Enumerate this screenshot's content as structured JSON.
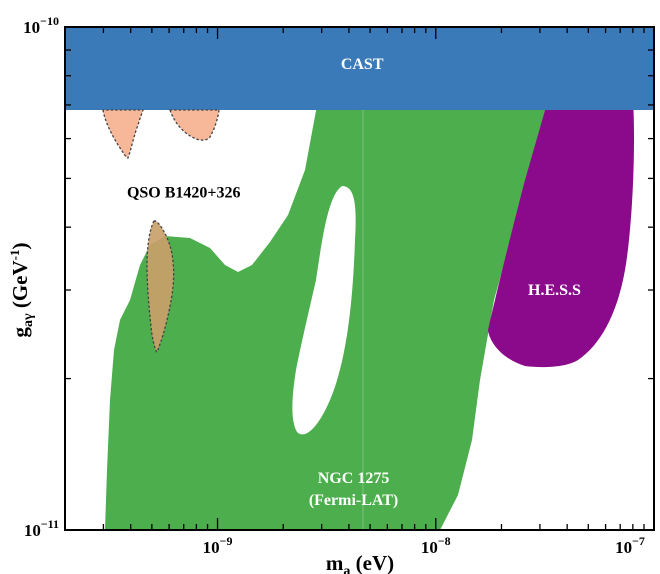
{
  "chart_data": {
    "type": "area",
    "xlabel_main": "m",
    "xlabel_sub": "a",
    "xlabel_rest": " (eV)",
    "ylabel_main": "g",
    "ylabel_sub": "aγ",
    "ylabel_unit": " (GeV",
    "ylabel_exp": "-1",
    "ylabel_close": ")",
    "x_scale": "log",
    "y_scale": "log",
    "xlim": [
      2e-10,
      1e-07
    ],
    "ylim": [
      1e-11,
      1e-10
    ],
    "x_ticks": [
      {
        "value": 1e-09,
        "base": "10",
        "exp": "−9"
      },
      {
        "value": 1e-08,
        "base": "10",
        "exp": "−8"
      },
      {
        "value": 1e-07,
        "base": "10",
        "exp": "−7"
      }
    ],
    "y_ticks": [
      {
        "value": 1e-11,
        "base": "10",
        "exp": "−11"
      },
      {
        "value": 1e-10,
        "base": "10",
        "exp": "−10"
      }
    ],
    "grid": false,
    "legend": "none",
    "regions": [
      {
        "name": "CAST",
        "label": "CAST",
        "color": "#3a7ab8",
        "label_color": "#ffffff",
        "label_x": 4.6e-09,
        "label_y": 8.25e-11
      },
      {
        "name": "NGC 1275",
        "label_lines": [
          "NGC 1275",
          "(Fermi-LAT)"
        ],
        "color": "#4cae4c",
        "label_color": "#ffffff",
        "label_x": 4.2e-09,
        "label_y": 1.24e-11
      },
      {
        "name": "H.E.S.S",
        "label": "H.E.S.S",
        "color": "#8b0a8b",
        "label_color": "#ffffff",
        "label_x": 3.5e-08,
        "label_y": 2.93e-11
      },
      {
        "name": "QSO B1420+326",
        "label": "QSO B1420+326",
        "color": "#f7b89a",
        "label_color": "#000000",
        "label_x": 7e-10,
        "label_y": 4.58e-11
      }
    ]
  }
}
